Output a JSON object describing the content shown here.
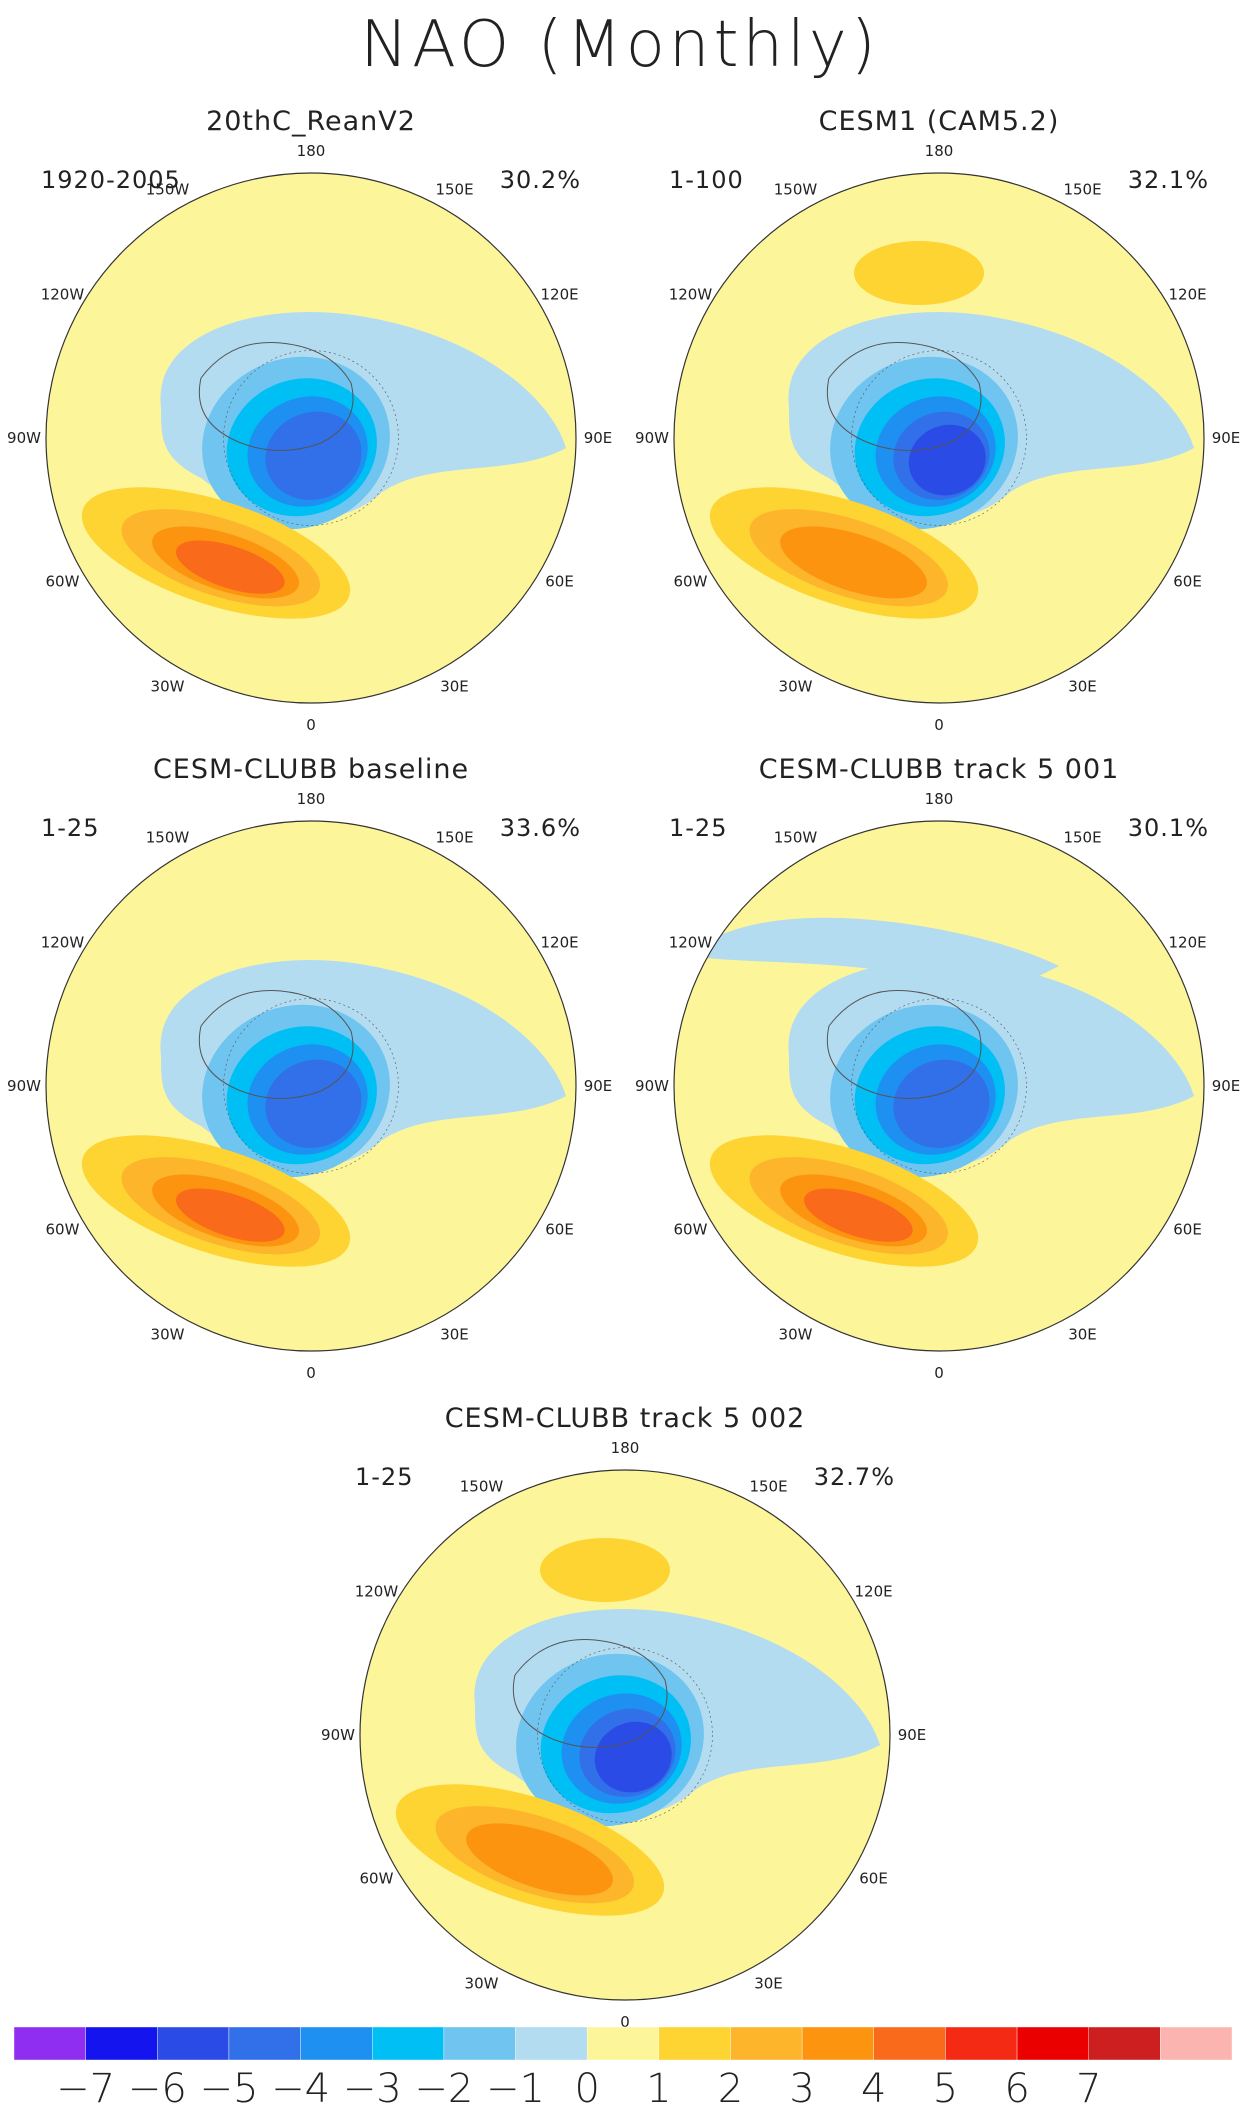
{
  "figure": {
    "title": "NAO (Monthly)"
  },
  "chart_data": {
    "type": "heatmap",
    "projection": "north polar stereographic",
    "longitude_labels": [
      "180",
      "150E",
      "120E",
      "90E",
      "60E",
      "30E",
      "0",
      "30W",
      "60W",
      "90W",
      "120W",
      "150W"
    ],
    "panels": [
      {
        "title": "20thC_ReanV2",
        "period": "1920-2005",
        "variance_explained": "30.2%",
        "features": [
          {
            "name": "Arctic negative center",
            "min": -5
          },
          {
            "name": "Atlantic positive center",
            "max": 4
          }
        ]
      },
      {
        "title": "CESM1 (CAM5.2)",
        "period": "1-100",
        "variance_explained": "32.1%",
        "features": [
          {
            "name": "Arctic negative center",
            "min": -6
          },
          {
            "name": "Atlantic positive center",
            "max": 3
          },
          {
            "name": "North Pacific positive center",
            "max": 2
          }
        ]
      },
      {
        "title": "CESM-CLUBB baseline",
        "period": "1-25",
        "variance_explained": "33.6%",
        "features": [
          {
            "name": "Arctic negative center",
            "min": -5
          },
          {
            "name": "Atlantic positive center",
            "max": 4
          }
        ]
      },
      {
        "title": "CESM-CLUBB track 5 001",
        "period": "1-25",
        "variance_explained": "30.1%",
        "features": [
          {
            "name": "Arctic negative center",
            "min": -5
          },
          {
            "name": "Atlantic positive center",
            "max": 4
          }
        ]
      },
      {
        "title": "CESM-CLUBB track 5 002",
        "period": "1-25",
        "variance_explained": "32.7%",
        "features": [
          {
            "name": "Arctic negative center",
            "min": -6
          },
          {
            "name": "Atlantic positive center",
            "max": 3
          },
          {
            "name": "North Pacific positive center",
            "max": 2
          }
        ]
      }
    ],
    "colorbar": {
      "ticks": [
        "−7",
        "−6",
        "−5",
        "−4",
        "−3",
        "−2",
        "−1",
        "0",
        "1",
        "2",
        "3",
        "4",
        "5",
        "6",
        "7"
      ],
      "bins": [
        {
          "range": "< -7",
          "color": "#8f2ef0"
        },
        {
          "range": "-7 to -6",
          "color": "#1414ee"
        },
        {
          "range": "-6 to -5",
          "color": "#2b4be6"
        },
        {
          "range": "-5 to -4",
          "color": "#3170e8"
        },
        {
          "range": "-4 to -3",
          "color": "#1e90f2"
        },
        {
          "range": "-3 to -2",
          "color": "#00bff5"
        },
        {
          "range": "-2 to -1",
          "color": "#6fc4f0"
        },
        {
          "range": "-1 to 0",
          "color": "#b3dcf0"
        },
        {
          "range": "0 to 1",
          "color": "#fdf59a"
        },
        {
          "range": "1 to 2",
          "color": "#fdd431"
        },
        {
          "range": "2 to 3",
          "color": "#fdb52c"
        },
        {
          "range": "3 to 4",
          "color": "#fd9410"
        },
        {
          "range": "4 to 5",
          "color": "#f96a1b"
        },
        {
          "range": "5 to 6",
          "color": "#f52a14"
        },
        {
          "range": "6 to 7",
          "color": "#eb0000"
        },
        {
          "range": "7 to 8",
          "color": "#cd1f1f"
        },
        {
          "range": "> 8",
          "color": "#fbb4b0"
        }
      ]
    }
  }
}
